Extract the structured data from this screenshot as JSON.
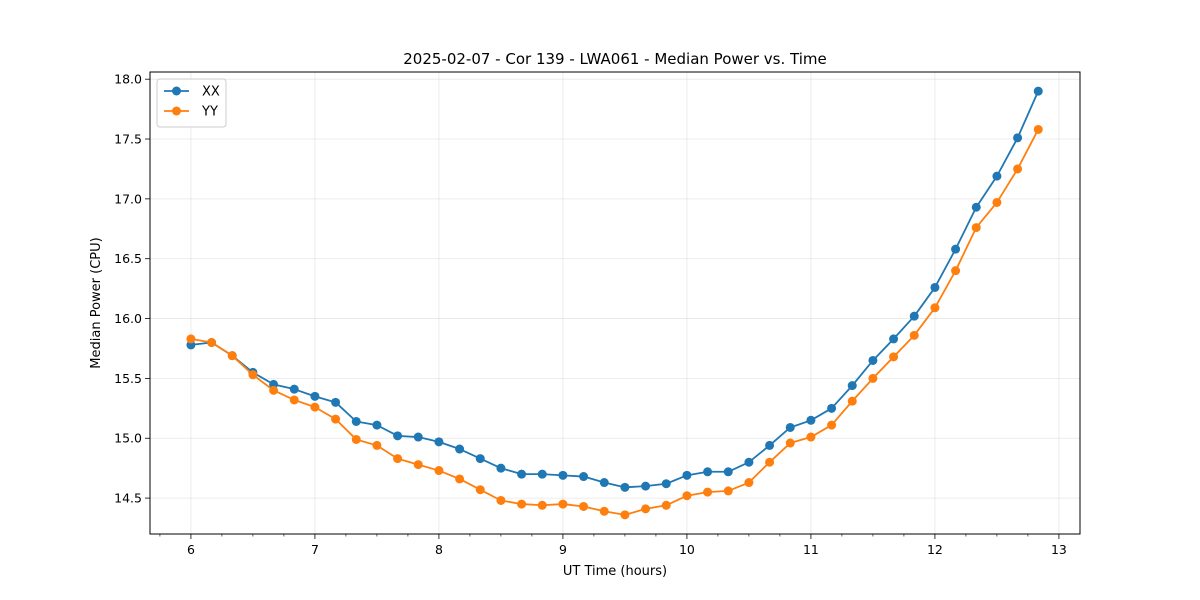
{
  "chart_data": {
    "type": "line",
    "title": "2025-02-07 - Cor 139 - LWA061 - Median Power vs. Time",
    "xlabel": "UT Time (hours)",
    "ylabel": "Median Power (CPU)",
    "xlim": [
      5.67,
      13.17
    ],
    "ylim": [
      14.2,
      18.06
    ],
    "xticks": [
      6,
      7,
      8,
      9,
      10,
      11,
      12,
      13
    ],
    "xtick_labels": [
      "6",
      "7",
      "8",
      "9",
      "10",
      "11",
      "12",
      "13"
    ],
    "yticks": [
      14.5,
      15.0,
      15.5,
      16.0,
      16.5,
      17.0,
      17.5,
      18.0
    ],
    "ytick_labels": [
      "14.5",
      "15.0",
      "15.5",
      "16.0",
      "16.5",
      "17.0",
      "17.5",
      "18.0"
    ],
    "grid": true,
    "legend_position": "top-left",
    "x": [
      6.0,
      6.1667,
      6.3333,
      6.5,
      6.6667,
      6.8333,
      7.0,
      7.1667,
      7.3333,
      7.5,
      7.6667,
      7.8333,
      8.0,
      8.1667,
      8.3333,
      8.5,
      8.6667,
      8.8333,
      9.0,
      9.1667,
      9.3333,
      9.5,
      9.6667,
      9.8333,
      10.0,
      10.1667,
      10.3333,
      10.5,
      10.6667,
      10.8333,
      11.0,
      11.1667,
      11.3333,
      11.5,
      11.6667,
      11.8333,
      12.0,
      12.1667,
      12.3333,
      12.5,
      12.6667,
      12.8333
    ],
    "series": [
      {
        "name": "XX",
        "color": "#1f77b4",
        "values": [
          15.78,
          15.8,
          15.69,
          15.55,
          15.45,
          15.41,
          15.35,
          15.3,
          15.14,
          15.11,
          15.02,
          15.01,
          14.97,
          14.91,
          14.83,
          14.75,
          14.7,
          14.7,
          14.69,
          14.68,
          14.63,
          14.59,
          14.6,
          14.62,
          14.69,
          14.72,
          14.72,
          14.8,
          14.94,
          15.09,
          15.15,
          15.25,
          15.44,
          15.65,
          15.83,
          16.02,
          16.26,
          16.58,
          16.93,
          17.19,
          17.51,
          17.9
        ]
      },
      {
        "name": "YY",
        "color": "#ff7f0e",
        "values": [
          15.83,
          15.8,
          15.69,
          15.53,
          15.4,
          15.32,
          15.26,
          15.16,
          14.99,
          14.94,
          14.83,
          14.78,
          14.73,
          14.66,
          14.57,
          14.48,
          14.45,
          14.44,
          14.45,
          14.43,
          14.39,
          14.36,
          14.41,
          14.44,
          14.52,
          14.55,
          14.56,
          14.63,
          14.8,
          14.96,
          15.01,
          15.11,
          15.31,
          15.5,
          15.68,
          15.86,
          16.09,
          16.4,
          16.76,
          16.97,
          17.25,
          17.58
        ]
      }
    ]
  }
}
